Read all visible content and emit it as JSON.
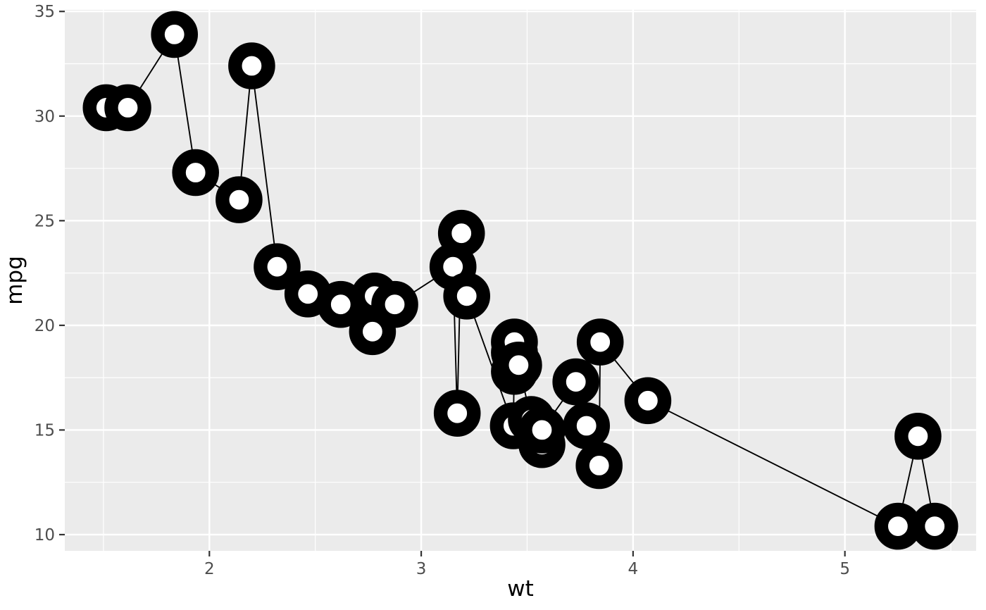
{
  "chart_data": {
    "type": "line",
    "marker": "open-circle-thick-ring",
    "title": "",
    "xlabel": "wt",
    "ylabel": "mpg",
    "xlim": [
      1.3175,
      5.6195
    ],
    "ylim": [
      9.225,
      35.075
    ],
    "x_major_ticks": [
      2,
      3,
      4,
      5
    ],
    "x_minor_gridlines": [
      1.5,
      2.5,
      3.5,
      4.5,
      5.5
    ],
    "y_major_ticks": [
      10,
      15,
      20,
      25,
      30,
      35
    ],
    "y_minor_gridlines": [
      12.5,
      17.5,
      22.5,
      27.5,
      32.5
    ],
    "grid": true,
    "legend": "none",
    "points": [
      [
        1.513,
        30.4
      ],
      [
        1.615,
        30.4
      ],
      [
        1.835,
        33.9
      ],
      [
        1.935,
        27.3
      ],
      [
        2.14,
        26.0
      ],
      [
        2.2,
        32.4
      ],
      [
        2.32,
        22.8
      ],
      [
        2.465,
        21.5
      ],
      [
        2.62,
        21.0
      ],
      [
        2.77,
        19.7
      ],
      [
        2.78,
        21.4
      ],
      [
        2.875,
        21.0
      ],
      [
        3.15,
        22.8
      ],
      [
        3.17,
        15.8
      ],
      [
        3.19,
        24.4
      ],
      [
        3.215,
        21.4
      ],
      [
        3.435,
        15.2
      ],
      [
        3.44,
        18.7
      ],
      [
        3.44,
        19.2
      ],
      [
        3.44,
        17.8
      ],
      [
        3.46,
        18.1
      ],
      [
        3.52,
        15.5
      ],
      [
        3.57,
        14.3
      ],
      [
        3.57,
        15.0
      ],
      [
        3.73,
        17.3
      ],
      [
        3.78,
        15.2
      ],
      [
        3.84,
        13.3
      ],
      [
        3.845,
        19.2
      ],
      [
        4.07,
        16.4
      ],
      [
        5.25,
        10.4
      ],
      [
        5.345,
        14.7
      ],
      [
        5.424,
        10.4
      ]
    ],
    "style": {
      "panel_bg": "#EBEBEB",
      "grid_color": "#FFFFFF",
      "line_color": "#000000",
      "point_fill": "#FFFFFF",
      "point_stroke": "#000000",
      "tick_color": "#333333",
      "tick_label_color": "#4D4D4D",
      "axis_title_color": "#000000"
    }
  }
}
